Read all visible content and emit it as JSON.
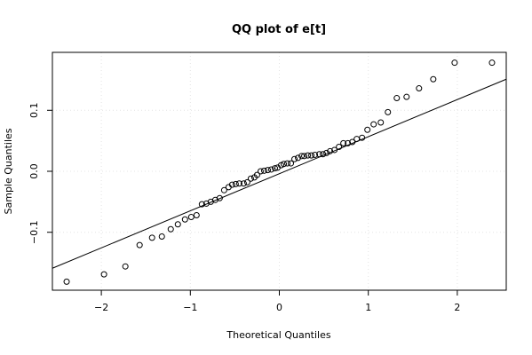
{
  "chart_data": {
    "type": "scatter",
    "title": "QQ plot of e[t]",
    "xlabel": "Theoretical Quantiles",
    "ylabel": "Sample Quantiles",
    "xlim": [
      -2.55,
      2.55
    ],
    "ylim": [
      -0.195,
      0.195
    ],
    "xticks": [
      -2,
      -1,
      0,
      1,
      2
    ],
    "xtick_labels": [
      "−2",
      "−1",
      "0",
      "1",
      "2"
    ],
    "yticks": [
      -0.1,
      0.0,
      0.1
    ],
    "ytick_labels": [
      "−0.1",
      "0.0",
      "0.1"
    ],
    "grid": true,
    "points": {
      "x": [
        -2.39,
        -1.97,
        -1.73,
        -1.57,
        -1.43,
        -1.32,
        -1.22,
        -1.14,
        -1.06,
        -0.99,
        -0.93,
        -0.87,
        -0.82,
        -0.77,
        -0.72,
        -0.67,
        -0.62,
        -0.57,
        -0.53,
        -0.49,
        -0.45,
        -0.4,
        -0.36,
        -0.32,
        -0.28,
        -0.25,
        -0.21,
        -0.17,
        -0.13,
        -0.09,
        -0.05,
        -0.02,
        0.02,
        0.05,
        0.09,
        0.13,
        0.17,
        0.21,
        0.25,
        0.28,
        0.32,
        0.36,
        0.4,
        0.45,
        0.49,
        0.53,
        0.57,
        0.62,
        0.67,
        0.72,
        0.77,
        0.82,
        0.87,
        0.93,
        0.99,
        1.06,
        1.14,
        1.22,
        1.32,
        1.43,
        1.57,
        1.73,
        1.97,
        2.39
      ],
      "y": [
        -0.181,
        -0.169,
        -0.156,
        -0.121,
        -0.109,
        -0.107,
        -0.095,
        -0.087,
        -0.079,
        -0.075,
        -0.072,
        -0.054,
        -0.053,
        -0.05,
        -0.047,
        -0.044,
        -0.031,
        -0.026,
        -0.022,
        -0.021,
        -0.02,
        -0.02,
        -0.018,
        -0.012,
        -0.01,
        -0.006,
        0.0,
        0.001,
        0.002,
        0.003,
        0.005,
        0.006,
        0.01,
        0.012,
        0.013,
        0.013,
        0.02,
        0.022,
        0.025,
        0.025,
        0.026,
        0.026,
        0.027,
        0.028,
        0.028,
        0.03,
        0.033,
        0.035,
        0.04,
        0.046,
        0.046,
        0.048,
        0.053,
        0.055,
        0.068,
        0.077,
        0.08,
        0.097,
        0.12,
        0.122,
        0.136,
        0.151,
        0.178,
        0.178
      ]
    },
    "reference_line": {
      "x1": -2.55,
      "y1": -0.159,
      "x2": 2.55,
      "y2": 0.151
    }
  }
}
